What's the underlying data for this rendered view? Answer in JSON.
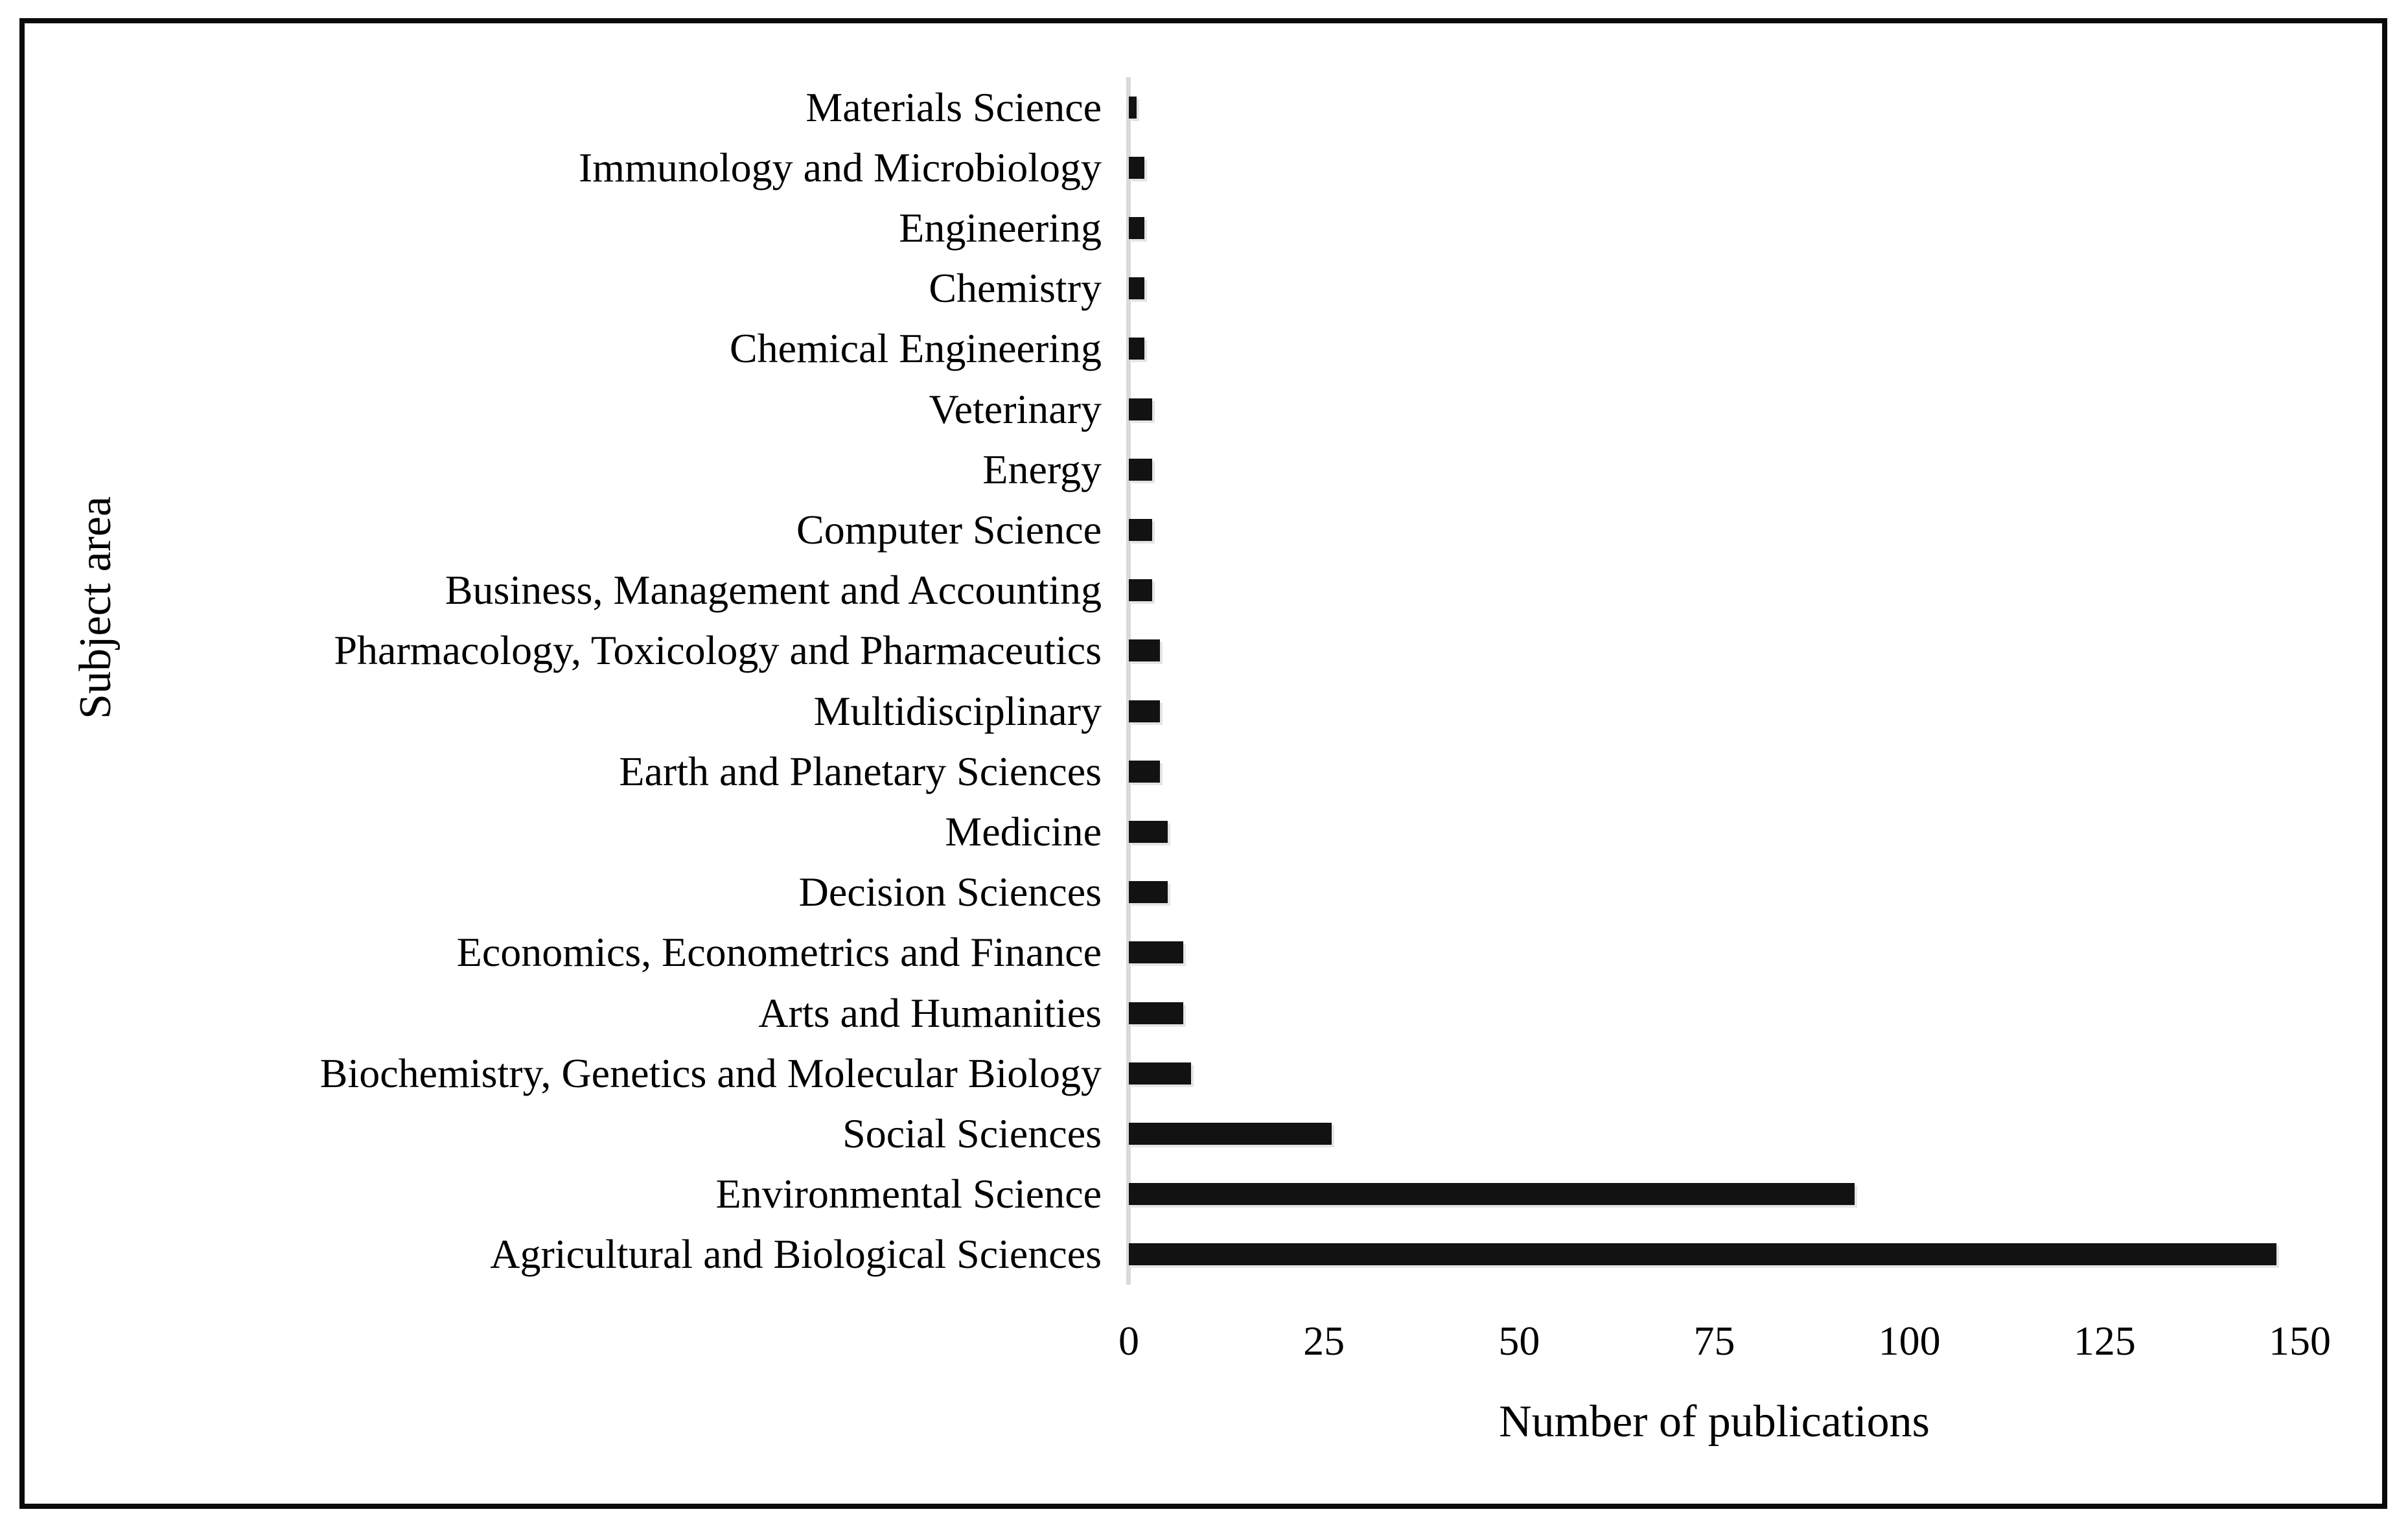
{
  "figure": {
    "background": "#ffffff",
    "border_color": "#0a0a0a"
  },
  "chart_data": {
    "type": "bar",
    "orientation": "horizontal",
    "title": "",
    "xlabel": "Number of publications",
    "ylabel": "Subject area",
    "xlim": [
      0,
      150
    ],
    "xticks": [
      0,
      25,
      50,
      75,
      100,
      125,
      150
    ],
    "grid": false,
    "legend": false,
    "bar_color": "#121212",
    "axis_line_color": "#d9d9d9",
    "categories_top_to_bottom": [
      "Materials Science",
      "Immunology and Microbiology",
      "Engineering",
      "Chemistry",
      "Chemical Engineering",
      "Veterinary",
      "Energy",
      "Computer Science",
      "Business, Management and Accounting",
      "Pharmacology, Toxicology and Pharmaceutics",
      "Multidisciplinary",
      "Earth and Planetary Sciences",
      "Medicine",
      "Decision Sciences",
      "Economics, Econometrics and Finance",
      "Arts and Humanities",
      "Biochemistry, Genetics and Molecular Biology",
      "Social Sciences",
      "Environmental Science",
      "Agricultural and Biological Sciences"
    ],
    "values": [
      1,
      2,
      2,
      2,
      2,
      3,
      3,
      3,
      3,
      4,
      4,
      4,
      5,
      5,
      7,
      7,
      8,
      26,
      93,
      147
    ]
  }
}
